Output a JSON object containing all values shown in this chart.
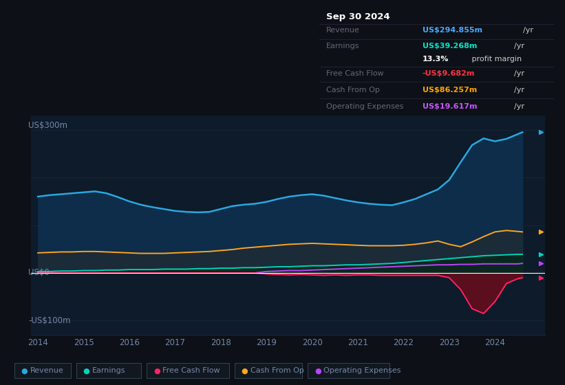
{
  "background_color": "#0d1117",
  "plot_bg_color": "#0d1b2a",
  "title_box": {
    "date": "Sep 30 2024",
    "rows": [
      {
        "label": "Revenue",
        "value": "US$294.855m",
        "unit": "/yr",
        "value_color": "#4da6ff"
      },
      {
        "label": "Earnings",
        "value": "US$39.268m",
        "unit": "/yr",
        "value_color": "#00e5c8"
      },
      {
        "label": "",
        "value": "13.3%",
        "unit": " profit margin",
        "value_color": "#ffffff"
      },
      {
        "label": "Free Cash Flow",
        "value": "-US$9.682m",
        "unit": "/yr",
        "value_color": "#ff3344"
      },
      {
        "label": "Cash From Op",
        "value": "US$86.257m",
        "unit": "/yr",
        "value_color": "#ffa500"
      },
      {
        "label": "Operating Expenses",
        "value": "US$19.617m",
        "unit": "/yr",
        "value_color": "#cc55ff"
      }
    ]
  },
  "years": [
    2014,
    2014.25,
    2014.5,
    2014.75,
    2015,
    2015.25,
    2015.5,
    2015.75,
    2016,
    2016.25,
    2016.5,
    2016.75,
    2017,
    2017.25,
    2017.5,
    2017.75,
    2018,
    2018.25,
    2018.5,
    2018.75,
    2019,
    2019.25,
    2019.5,
    2019.75,
    2020,
    2020.25,
    2020.5,
    2020.75,
    2021,
    2021.25,
    2021.5,
    2021.75,
    2022,
    2022.25,
    2022.5,
    2022.75,
    2023,
    2023.25,
    2023.5,
    2023.75,
    2024,
    2024.25,
    2024.5,
    2024.6
  ],
  "revenue": [
    160,
    163,
    165,
    167,
    169,
    171,
    167,
    159,
    150,
    143,
    138,
    134,
    130,
    128,
    127,
    128,
    134,
    140,
    143,
    145,
    149,
    155,
    160,
    163,
    165,
    162,
    157,
    152,
    148,
    145,
    143,
    142,
    148,
    155,
    165,
    175,
    195,
    232,
    268,
    282,
    276,
    281,
    291,
    295
  ],
  "earnings": [
    3,
    3,
    4,
    4,
    5,
    5,
    6,
    6,
    7,
    7,
    7,
    8,
    8,
    8,
    9,
    9,
    10,
    10,
    11,
    11,
    12,
    13,
    13,
    14,
    15,
    15,
    16,
    17,
    17,
    18,
    19,
    20,
    22,
    24,
    26,
    28,
    30,
    32,
    34,
    36,
    37,
    38,
    39,
    39
  ],
  "free_cash_flow": [
    0,
    0,
    0,
    0,
    0,
    0,
    0,
    0,
    0,
    0,
    0,
    0,
    0,
    0,
    0,
    0,
    0,
    0,
    0,
    0,
    -2,
    -3,
    -4,
    -3,
    -4,
    -5,
    -4,
    -5,
    -4,
    -4,
    -5,
    -5,
    -5,
    -5,
    -5,
    -5,
    -10,
    -35,
    -75,
    -85,
    -60,
    -22,
    -12,
    -10
  ],
  "cash_from_op": [
    42,
    43,
    44,
    44,
    45,
    45,
    44,
    43,
    42,
    41,
    41,
    41,
    42,
    43,
    44,
    45,
    47,
    49,
    52,
    54,
    56,
    58,
    60,
    61,
    62,
    61,
    60,
    59,
    58,
    57,
    57,
    57,
    58,
    60,
    63,
    67,
    60,
    55,
    65,
    76,
    86,
    89,
    87,
    86
  ],
  "operating_expenses": [
    0,
    0,
    0,
    0,
    0,
    0,
    0,
    0,
    0,
    0,
    0,
    0,
    0,
    0,
    0,
    0,
    0,
    0,
    0,
    0,
    3,
    4,
    5,
    5,
    6,
    7,
    8,
    9,
    10,
    11,
    12,
    13,
    14,
    15,
    16,
    17,
    17,
    18,
    18,
    19,
    19,
    19,
    19,
    20
  ],
  "revenue_color": "#29a8e0",
  "revenue_fill": "#0d2d4a",
  "earnings_color": "#00d4b8",
  "earnings_fill": "#09312b",
  "free_cash_flow_color": "#ff2266",
  "free_cash_flow_fill_neg": "#5a0e1e",
  "cash_from_op_color": "#ffa520",
  "cash_from_op_fill": "#2a2200",
  "operating_expenses_color": "#bb44ff",
  "grid_color": "#1a2a3a",
  "axis_label_color": "#7788aa",
  "zero_line_color": "#ffffff",
  "ylim": [
    -130,
    330
  ],
  "xlim_start": 2013.85,
  "xlim_end": 2025.1,
  "x_ticks": [
    2014,
    2015,
    2016,
    2017,
    2018,
    2019,
    2020,
    2021,
    2022,
    2023,
    2024
  ],
  "legend_items": [
    {
      "label": "Revenue",
      "color": "#29a8e0"
    },
    {
      "label": "Earnings",
      "color": "#00d4b8"
    },
    {
      "label": "Free Cash Flow",
      "color": "#ff2266"
    },
    {
      "label": "Cash From Op",
      "color": "#ffa520"
    },
    {
      "label": "Operating Expenses",
      "color": "#bb44ff"
    }
  ]
}
